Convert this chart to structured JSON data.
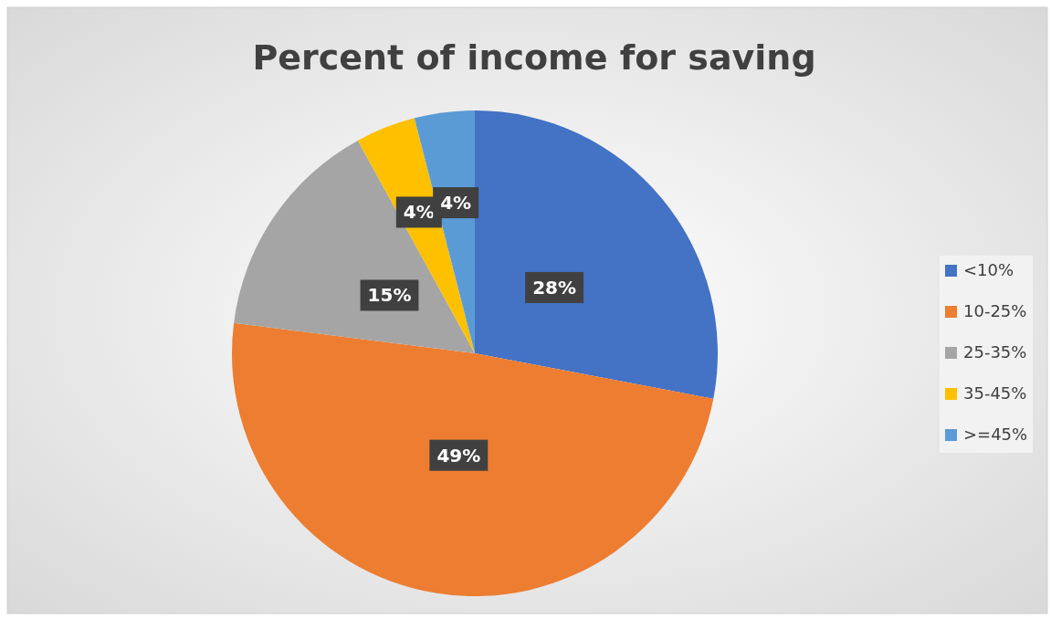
{
  "chart_data": {
    "type": "pie",
    "title": "Percent of income for saving",
    "categories": [
      "<10%",
      "10-25%",
      "25-35%",
      "35-45%",
      ">=45%"
    ],
    "values": [
      28,
      49,
      15,
      4,
      4
    ],
    "colors": [
      "#4472c4",
      "#ed7d31",
      "#a5a5a5",
      "#ffc000",
      "#5b9bd5"
    ],
    "value_labels": [
      "28%",
      "49%",
      "15%",
      "4%",
      "4%"
    ],
    "legend": "right"
  }
}
